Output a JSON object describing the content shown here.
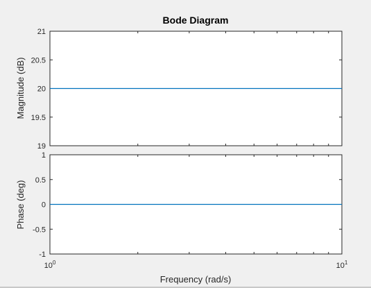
{
  "chart_data": [
    {
      "type": "line",
      "title": "Bode Diagram",
      "ylabel": "Magnitude (dB)",
      "xscale": "log",
      "xlim": [
        1,
        10
      ],
      "ylim": [
        19,
        21
      ],
      "yticks": [
        "19",
        "19.5",
        "20",
        "20.5",
        "21"
      ],
      "ytick_values": [
        19,
        19.5,
        20,
        20.5,
        21
      ],
      "x": [
        1,
        10
      ],
      "series": [
        {
          "values": [
            20,
            20
          ],
          "color": "#0072bd"
        }
      ]
    },
    {
      "type": "line",
      "ylabel": "Phase (deg)",
      "xlabel": "Frequency  (rad/s)",
      "xscale": "log",
      "xlim": [
        1,
        10
      ],
      "ylim": [
        -1,
        1
      ],
      "yticks": [
        "-1",
        "-0.5",
        "0",
        "0.5",
        "1"
      ],
      "ytick_values": [
        -1,
        -0.5,
        0,
        0.5,
        1
      ],
      "xticks": [
        {
          "value": 1,
          "base": "10",
          "exp": "0"
        },
        {
          "value": 10,
          "base": "10",
          "exp": "1"
        }
      ],
      "x": [
        1,
        10
      ],
      "series": [
        {
          "values": [
            0,
            0
          ],
          "color": "#0072bd"
        }
      ]
    }
  ]
}
